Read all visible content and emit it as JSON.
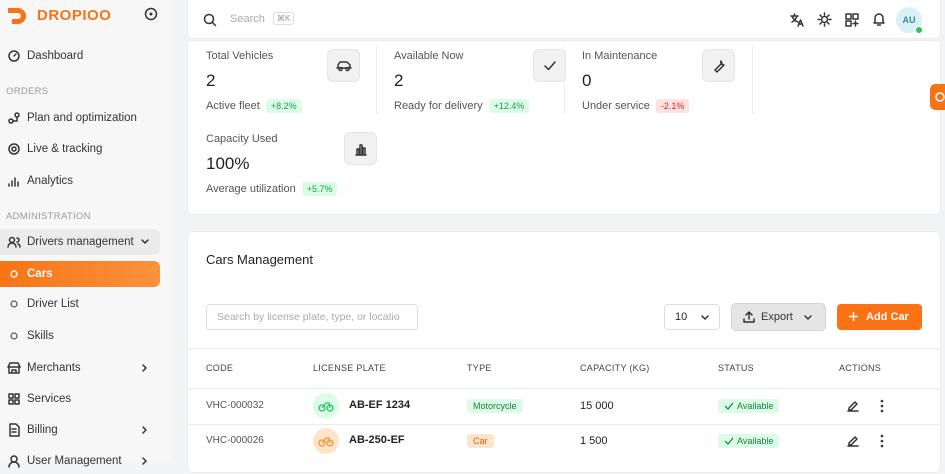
{
  "brand": "DROPIOO",
  "nav": {
    "dashboard": "Dashboard",
    "orders": {
      "heading": "ORDERS",
      "items": [
        "Plan and optimization",
        "Live & tracking",
        "Analytics"
      ]
    },
    "administration": {
      "heading": "ADMINISTRATION",
      "items": [
        "Drivers management",
        "Cars",
        "Driver List",
        "Skills",
        "Merchants",
        "Services",
        "Billing",
        "User Management"
      ]
    }
  },
  "topbar": {
    "search": "Search",
    "shortcut": "⌘K",
    "avatar": "AU"
  },
  "stats": [
    {
      "label": "Total Vehicles",
      "value": "2",
      "note": "Active fleet",
      "change": "+8.2%"
    },
    {
      "label": "Available Now",
      "value": "2",
      "note": "Ready for delivery",
      "change": "+12.4%"
    },
    {
      "label": "In Maintenance",
      "value": "0",
      "note": "Under service",
      "change": "-2.1%"
    },
    {
      "label": "Capacity Used",
      "value": "100%",
      "note": "Average utilization",
      "change": "+5.7%"
    }
  ],
  "cars": {
    "title": "Cars Management",
    "search_placeholder": "Search by license plate, type, or locatio",
    "page_size": "10",
    "export": "Export",
    "add": "Add Car",
    "columns": [
      "CODE",
      "LICENSE PLATE",
      "TYPE",
      "CAPACITY (KG)",
      "STATUS",
      "ACTIONS"
    ],
    "rows": [
      [
        "VHC-000032",
        "AB-EF 1234",
        "Motorcycle",
        "15 000",
        "Available"
      ],
      [
        "VHC-000026",
        "AB-250-EF",
        "Car",
        "1 500",
        "Available"
      ]
    ]
  }
}
